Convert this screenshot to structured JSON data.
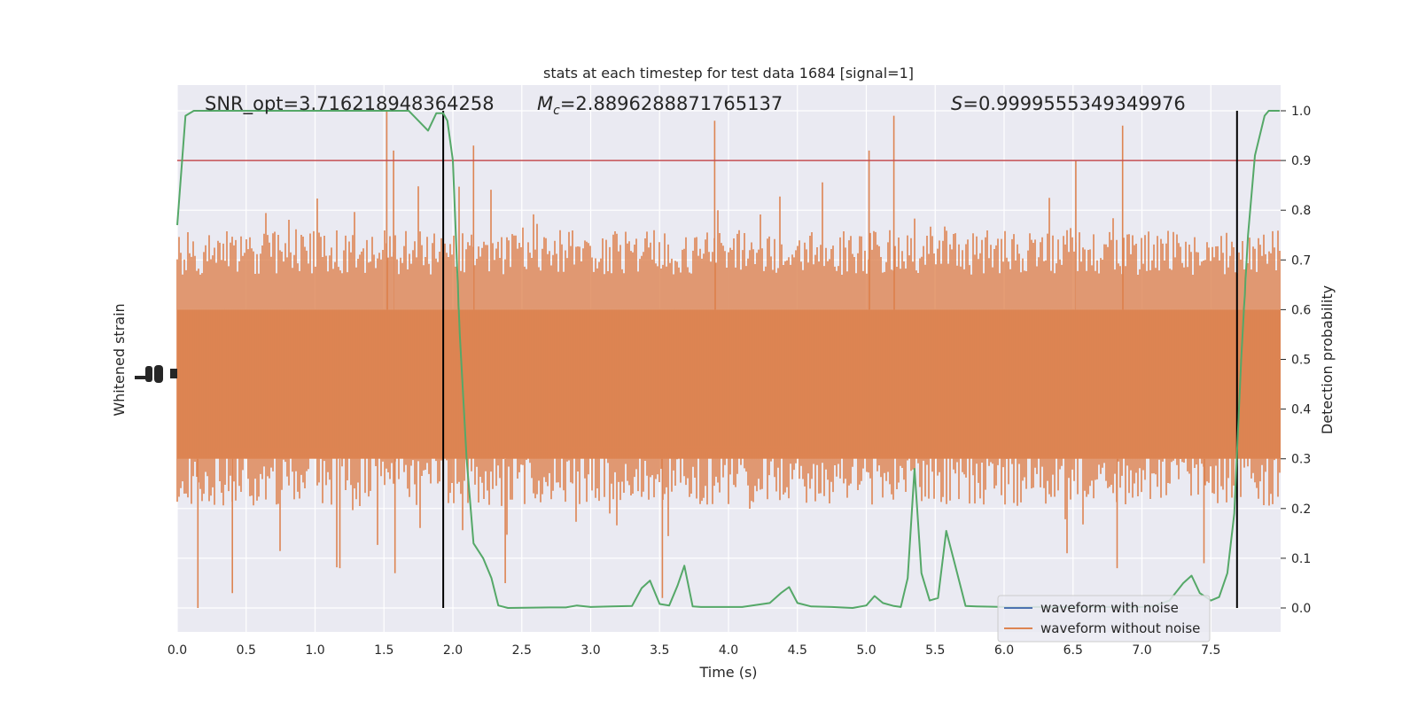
{
  "chart_data": {
    "type": "line",
    "title": "stats at each timestep for test data 1684 [signal=1]",
    "xlabel": "Time (s)",
    "ylabel_left": "Whitened strain",
    "ylabel_right": "Detection probability",
    "xlim": [
      0,
      8.0
    ],
    "ylim_right": [
      -0.05,
      1.05
    ],
    "x_ticks": [
      0.0,
      0.5,
      1.0,
      1.5,
      2.0,
      2.5,
      3.0,
      3.5,
      4.0,
      4.5,
      5.0,
      5.5,
      6.0,
      6.5,
      7.0,
      7.5
    ],
    "x_tick_labels": [
      "0.0",
      "0.5",
      "1.0",
      "1.5",
      "2.0",
      "2.5",
      "3.0",
      "3.5",
      "4.0",
      "4.5",
      "5.0",
      "5.5",
      "6.0",
      "6.5",
      "7.0",
      "7.5"
    ],
    "y_right_ticks": [
      0.0,
      0.1,
      0.2,
      0.3,
      0.4,
      0.5,
      0.6,
      0.7,
      0.8,
      0.9,
      1.0
    ],
    "y_right_tick_labels": [
      "0.0",
      "0.1",
      "0.2",
      "0.3",
      "0.4",
      "0.5",
      "0.6",
      "0.7",
      "0.8",
      "0.9",
      "1.0"
    ],
    "grid": true,
    "legend_position": "lower-right",
    "annotations": {
      "snr_opt": "SNR_opt=3.716218948364258",
      "mc_symbol": "M",
      "mc_sub": "c",
      "mc_value": "=2.8896288871765137",
      "s_symbol": "S",
      "s_value": "=0.9999555349349976"
    },
    "threshold": {
      "value": 0.9,
      "color": "#c44e52"
    },
    "vlines": {
      "x": [
        1.93,
        7.69
      ],
      "color": "#000000"
    },
    "series": [
      {
        "name": "waveform with noise",
        "color": "#4c72b0"
      },
      {
        "name": "waveform without noise",
        "color": "#dd8452",
        "band_level": [
          0.225,
          0.76
        ]
      },
      {
        "name": "detection probability",
        "color": "#55a868",
        "points": [
          [
            0.0,
            0.77
          ],
          [
            0.06,
            0.99
          ],
          [
            0.12,
            1.0
          ],
          [
            0.5,
            1.0
          ],
          [
            1.0,
            1.0
          ],
          [
            1.5,
            1.0
          ],
          [
            1.68,
            1.0
          ],
          [
            1.82,
            0.96
          ],
          [
            1.88,
            0.995
          ],
          [
            1.93,
            0.995
          ],
          [
            1.96,
            0.98
          ],
          [
            2.0,
            0.9
          ],
          [
            2.05,
            0.55
          ],
          [
            2.1,
            0.3
          ],
          [
            2.15,
            0.13
          ],
          [
            2.22,
            0.1
          ],
          [
            2.28,
            0.06
          ],
          [
            2.33,
            0.005
          ],
          [
            2.4,
            0.0
          ],
          [
            2.7,
            0.001
          ],
          [
            2.82,
            0.001
          ],
          [
            2.9,
            0.005
          ],
          [
            3.0,
            0.002
          ],
          [
            3.15,
            0.003
          ],
          [
            3.3,
            0.004
          ],
          [
            3.37,
            0.04
          ],
          [
            3.43,
            0.055
          ],
          [
            3.5,
            0.008
          ],
          [
            3.57,
            0.005
          ],
          [
            3.63,
            0.045
          ],
          [
            3.68,
            0.085
          ],
          [
            3.74,
            0.003
          ],
          [
            3.8,
            0.002
          ],
          [
            3.95,
            0.002
          ],
          [
            4.1,
            0.002
          ],
          [
            4.3,
            0.01
          ],
          [
            4.38,
            0.03
          ],
          [
            4.44,
            0.042
          ],
          [
            4.5,
            0.01
          ],
          [
            4.6,
            0.003
          ],
          [
            4.75,
            0.002
          ],
          [
            4.9,
            0.0
          ],
          [
            5.0,
            0.005
          ],
          [
            5.06,
            0.024
          ],
          [
            5.12,
            0.01
          ],
          [
            5.2,
            0.004
          ],
          [
            5.25,
            0.002
          ],
          [
            5.3,
            0.06
          ],
          [
            5.35,
            0.28
          ],
          [
            5.4,
            0.07
          ],
          [
            5.46,
            0.015
          ],
          [
            5.52,
            0.02
          ],
          [
            5.58,
            0.155
          ],
          [
            5.65,
            0.08
          ],
          [
            5.72,
            0.004
          ],
          [
            5.8,
            0.003
          ],
          [
            6.0,
            0.002
          ],
          [
            6.4,
            0.002
          ],
          [
            6.8,
            0.002
          ],
          [
            7.0,
            0.002
          ],
          [
            7.1,
            0.005
          ],
          [
            7.2,
            0.015
          ],
          [
            7.3,
            0.05
          ],
          [
            7.36,
            0.065
          ],
          [
            7.42,
            0.03
          ],
          [
            7.5,
            0.015
          ],
          [
            7.56,
            0.022
          ],
          [
            7.62,
            0.07
          ],
          [
            7.67,
            0.19
          ],
          [
            7.72,
            0.5
          ],
          [
            7.77,
            0.75
          ],
          [
            7.82,
            0.91
          ],
          [
            7.89,
            0.99
          ],
          [
            7.92,
            1.0
          ],
          [
            8.0,
            1.0
          ]
        ]
      }
    ]
  }
}
